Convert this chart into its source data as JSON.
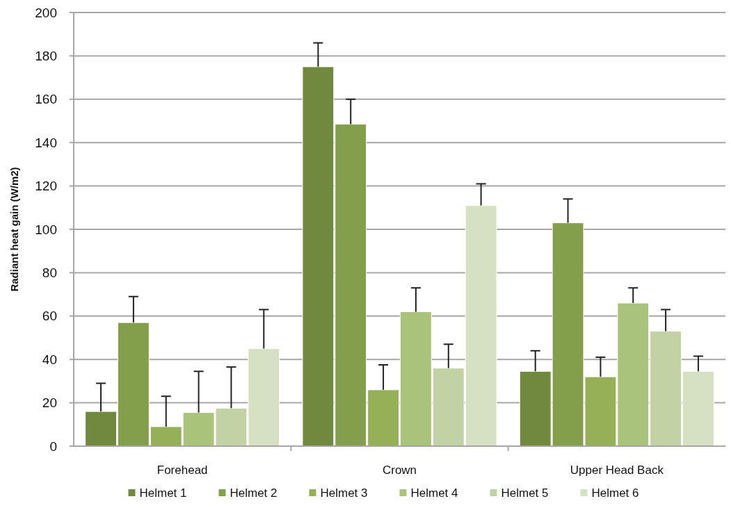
{
  "chart_data": {
    "type": "bar",
    "ylabel": "Radiant heat gain (W/m2)",
    "categories": [
      "Forehead",
      "Crown",
      "Upper Head Back"
    ],
    "series": [
      {
        "name": "Helmet 1",
        "color": "#71893f",
        "values": [
          16,
          175,
          34.5
        ],
        "errors": [
          [
            16,
            29
          ],
          [
            175,
            186
          ],
          [
            34.5,
            44
          ]
        ]
      },
      {
        "name": "Helmet 2",
        "color": "#839f4b",
        "values": [
          57,
          148.5,
          103
        ],
        "errors": [
          [
            57,
            69
          ],
          [
            148.5,
            160
          ],
          [
            103,
            114
          ]
        ]
      },
      {
        "name": "Helmet 3",
        "color": "#95b057",
        "values": [
          9,
          26,
          32
        ],
        "errors": [
          [
            9,
            23
          ],
          [
            26,
            37.5
          ],
          [
            32,
            41
          ]
        ]
      },
      {
        "name": "Helmet 4",
        "color": "#a9c47a",
        "values": [
          15.5,
          62,
          66
        ],
        "errors": [
          [
            15.5,
            34.5
          ],
          [
            62,
            73
          ],
          [
            66,
            73
          ]
        ]
      },
      {
        "name": "Helmet 5",
        "color": "#c2d2a4",
        "values": [
          17.5,
          36,
          53
        ],
        "errors": [
          [
            17.5,
            36.5
          ],
          [
            36,
            47
          ],
          [
            53,
            63
          ]
        ]
      },
      {
        "name": "Helmet 6",
        "color": "#d6e1c4",
        "values": [
          45,
          111,
          34.5
        ],
        "errors": [
          [
            45,
            63
          ],
          [
            111,
            121
          ],
          [
            34.5,
            41.5
          ]
        ]
      }
    ],
    "ylim": [
      0,
      200
    ],
    "yticks": [
      0,
      20,
      40,
      60,
      80,
      100,
      120,
      140,
      160,
      180,
      200
    ],
    "grid": "y",
    "legend": "bottom"
  }
}
